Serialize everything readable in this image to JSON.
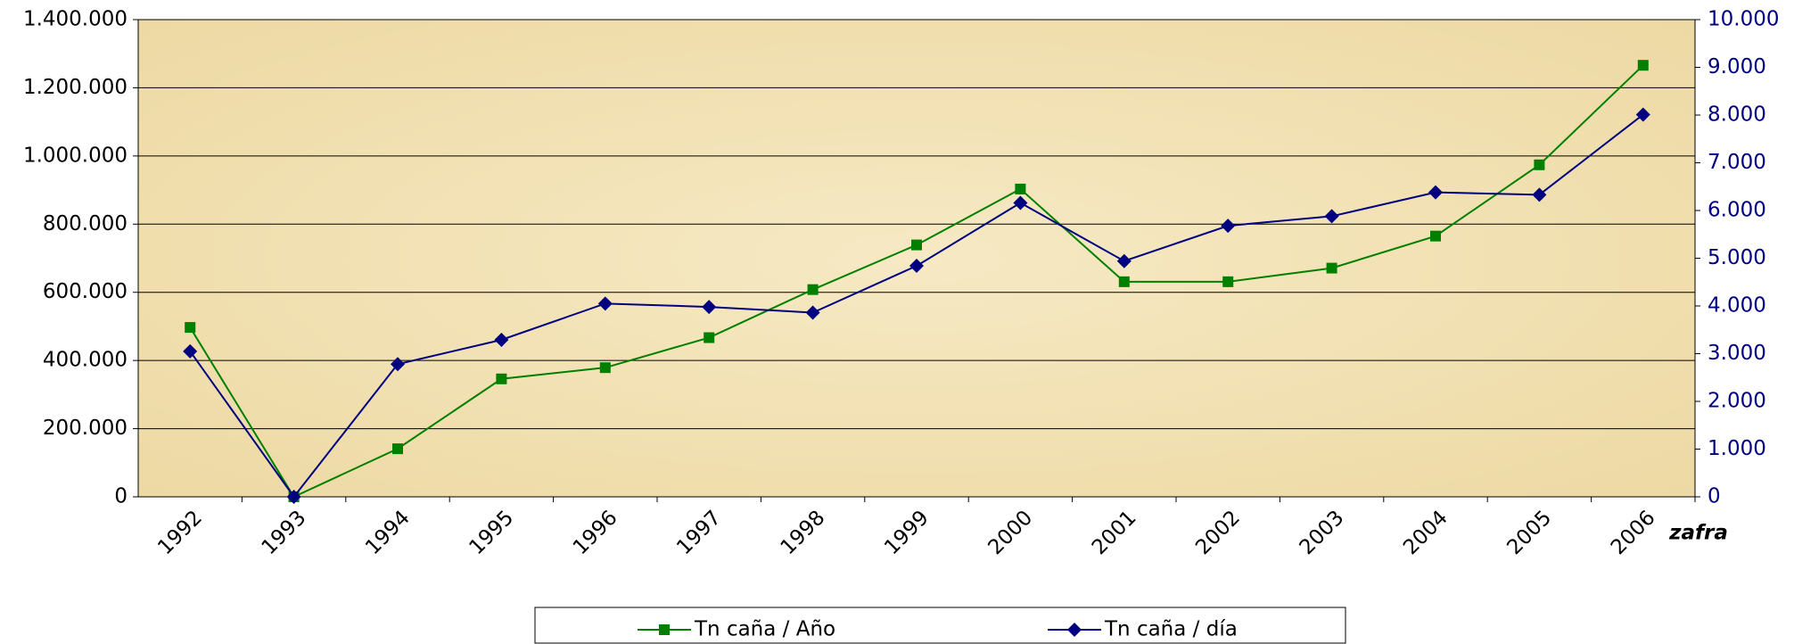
{
  "chart_data": {
    "type": "line",
    "x_label": "zafra",
    "categories": [
      "1992",
      "1993",
      "1994",
      "1995",
      "1996",
      "1997",
      "1998",
      "1999",
      "2000",
      "2001",
      "2002",
      "2003",
      "2004",
      "2005",
      "2006"
    ],
    "series": [
      {
        "name": "Tn caña / Año",
        "color": "#008000",
        "marker": "square",
        "values": [
          497000,
          0,
          141000,
          346000,
          379000,
          467000,
          608000,
          739000,
          903000,
          631000,
          631000,
          671000,
          765000,
          974000,
          1266000
        ]
      },
      {
        "name": "Tn caña / día",
        "color": "#000080",
        "marker": "diamond",
        "axis": "y2",
        "values": [
          3050,
          0,
          2780,
          3290,
          4050,
          3980,
          3860,
          4840,
          6160,
          4940,
          5680,
          5880,
          6380,
          6330,
          8010
        ]
      }
    ],
    "ylim": [
      0,
      1400000
    ],
    "yticks": [
      0,
      {
        "value": 200000,
        "label": "200.000"
      },
      {
        "value": 400000,
        "label": "400.000"
      },
      {
        "value": 600000,
        "label": "600.000"
      },
      {
        "value": 800000,
        "label": "800.000"
      },
      {
        "value": 1000000,
        "label": "1.000.000"
      },
      {
        "value": 1200000,
        "label": "1.200.000"
      },
      {
        "value": 1400000,
        "label": "1.400.000"
      }
    ],
    "y2lim": [
      0,
      10000
    ],
    "y2ticks": [
      0,
      {
        "value": 1000,
        "label": "1.000"
      },
      {
        "value": 2000,
        "label": "2.000"
      },
      {
        "value": 3000,
        "label": "3.000"
      },
      {
        "value": 4000,
        "label": "4.000"
      },
      {
        "value": 5000,
        "label": "5.000"
      },
      {
        "value": 6000,
        "label": "6.000"
      },
      {
        "value": 7000,
        "label": "7.000"
      },
      {
        "value": 8000,
        "label": "8.000"
      },
      {
        "value": 9000,
        "label": "9.000"
      },
      {
        "value": 10000,
        "label": "10.000"
      }
    ],
    "y2_color": "#000080",
    "grid": true,
    "legend": "bottom"
  }
}
